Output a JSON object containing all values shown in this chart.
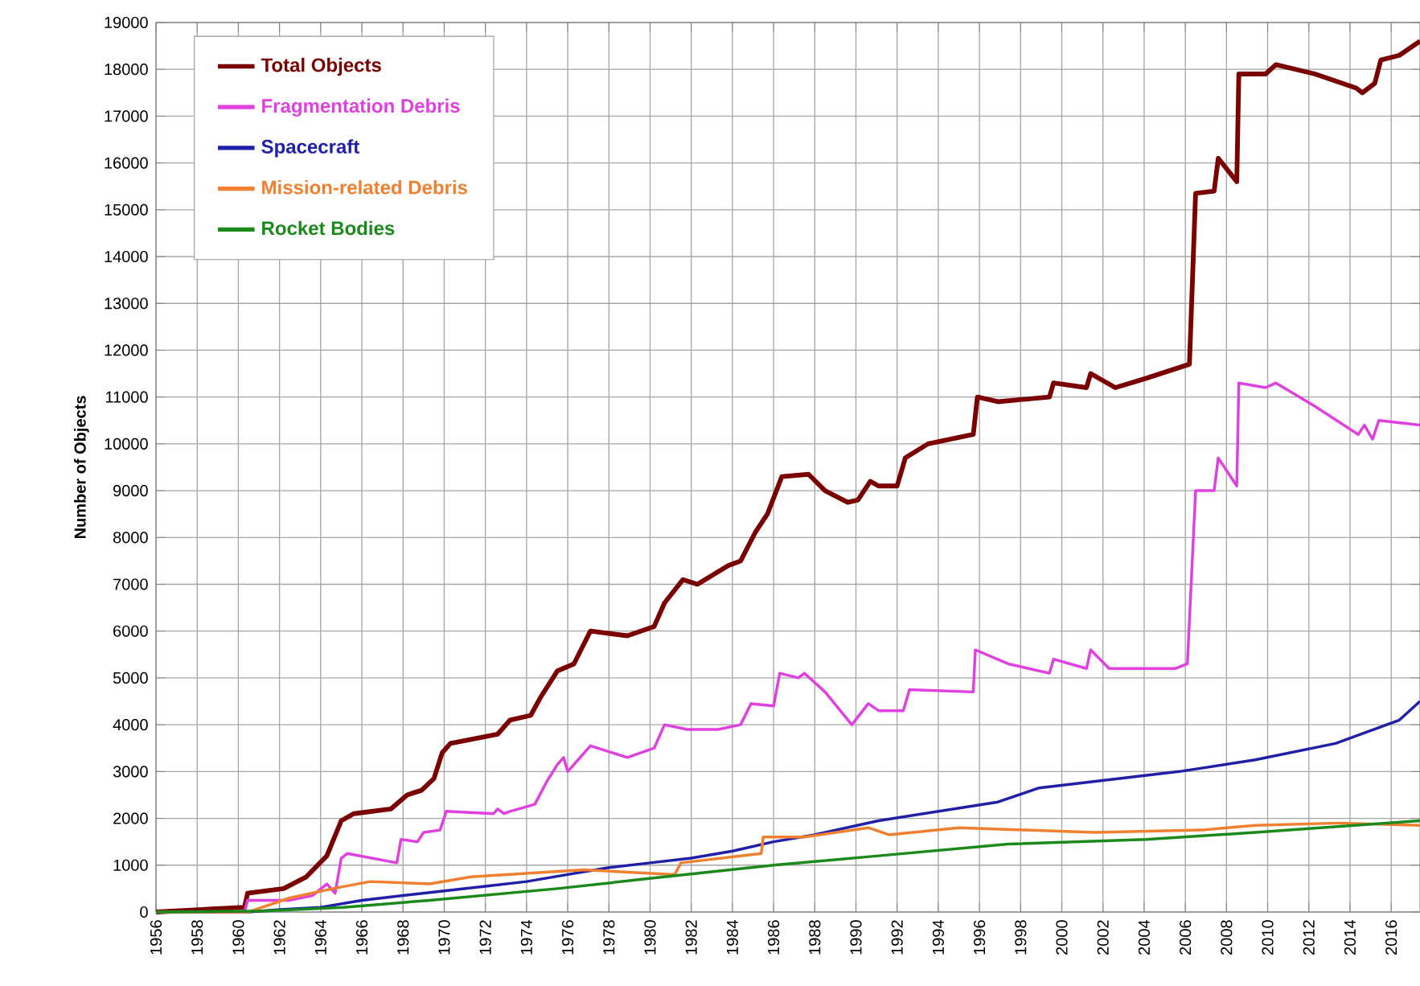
{
  "chart_data": {
    "type": "line",
    "ylabel": "Number of Objects",
    "xlim": [
      1956,
      2017.4
    ],
    "ylim": [
      0,
      19000
    ],
    "xticks": [
      1956,
      1958,
      1960,
      1962,
      1964,
      1966,
      1968,
      1970,
      1972,
      1974,
      1976,
      1978,
      1980,
      1982,
      1984,
      1986,
      1988,
      1990,
      1992,
      1994,
      1996,
      1998,
      2000,
      2002,
      2004,
      2006,
      2008,
      2010,
      2012,
      2014,
      2016
    ],
    "yticks": [
      0,
      1000,
      2000,
      3000,
      4000,
      5000,
      6000,
      7000,
      8000,
      9000,
      10000,
      11000,
      12000,
      13000,
      14000,
      15000,
      16000,
      17000,
      18000,
      19000
    ],
    "grid": true,
    "legend": "top left",
    "series": [
      {
        "name": "Total Objects",
        "color": "#7b0000",
        "x": [
          1956,
          1960.3,
          1960.45,
          1962.2,
          1963.3,
          1964.3,
          1965,
          1965.6,
          1967.4,
          1968.2,
          1968.9,
          1969.5,
          1969.9,
          1970.3,
          1972.6,
          1973.2,
          1974.2,
          1974.7,
          1975.5,
          1976.3,
          1977.1,
          1978.9,
          1980.2,
          1980.7,
          1981.6,
          1982.3,
          1983.8,
          1984.4,
          1985.1,
          1985.7,
          1986.4,
          1987.7,
          1988.5,
          1989.6,
          1990.1,
          1990.7,
          1991.1,
          1992.0,
          1992.4,
          1993.5,
          1995.7,
          1995.9,
          1996.9,
          1999.4,
          1999.6,
          2001.2,
          2001.4,
          2002.6,
          2004.1,
          2006.2,
          2006.5,
          2007.4,
          2007.6,
          2008.5,
          2008.6,
          2009.9,
          2010.4,
          2012.3,
          2014.3,
          2014.6,
          2015.2,
          2015.5,
          2016.4,
          2017.4
        ],
        "values": [
          0,
          100,
          400,
          500,
          750,
          1200,
          1950,
          2100,
          2200,
          2500,
          2600,
          2850,
          3400,
          3600,
          3800,
          4100,
          4200,
          4600,
          5150,
          5300,
          6000,
          5900,
          6100,
          6600,
          7100,
          7000,
          7400,
          7500,
          8100,
          8500,
          9300,
          9350,
          9000,
          8750,
          8800,
          9200,
          9100,
          9100,
          9700,
          10000,
          10200,
          11000,
          10900,
          11000,
          11300,
          11200,
          11500,
          11200,
          11400,
          11700,
          15350,
          15400,
          16100,
          15600,
          17900,
          17900,
          18100,
          17900,
          17600,
          17500,
          17700,
          18200,
          18300,
          18600
        ]
      },
      {
        "name": "Fragmentation Debris",
        "color": "#e040e0",
        "x": [
          1956,
          1960.3,
          1960.45,
          1962.5,
          1963.6,
          1964.3,
          1964.7,
          1965,
          1965.3,
          1967.7,
          1967.9,
          1968.7,
          1969,
          1969.8,
          1970.1,
          1972.4,
          1972.6,
          1972.9,
          1973.2,
          1974.4,
          1975,
          1975.5,
          1975.8,
          1976,
          1977.1,
          1978.9,
          1980.2,
          1980.7,
          1981.8,
          1983.3,
          1984.4,
          1984.9,
          1986,
          1986.3,
          1987.2,
          1987.5,
          1988.5,
          1989.8,
          1990.6,
          1991.1,
          1992.3,
          1992.6,
          1995.7,
          1995.8,
          1997.4,
          1999.4,
          1999.6,
          2001.2,
          2001.4,
          2002.3,
          2003.6,
          2005.5,
          2006.1,
          2006.5,
          2007.4,
          2007.6,
          2008.5,
          2008.6,
          2009.9,
          2010.4,
          2012.3,
          2014.4,
          2014.7,
          2015.1,
          2015.4,
          2017.4
        ],
        "values": [
          0,
          0,
          250,
          250,
          350,
          600,
          400,
          1150,
          1250,
          1050,
          1550,
          1500,
          1700,
          1750,
          2150,
          2100,
          2200,
          2100,
          2150,
          2300,
          2800,
          3150,
          3300,
          3000,
          3550,
          3300,
          3500,
          4000,
          3900,
          3900,
          4000,
          4450,
          4400,
          5100,
          5000,
          5100,
          4700,
          4000,
          4450,
          4300,
          4300,
          4750,
          4700,
          5600,
          5300,
          5100,
          5400,
          5200,
          5600,
          5200,
          5200,
          5200,
          5300,
          9000,
          9000,
          9700,
          9100,
          11300,
          11200,
          11300,
          10800,
          10200,
          10400,
          10100,
          10500,
          10400
        ]
      },
      {
        "name": "Spacecraft",
        "color": "#1f1fa8",
        "x": [
          1956,
          1960.5,
          1962,
          1964,
          1966,
          1968,
          1970,
          1972,
          1974,
          1976,
          1978,
          1980,
          1982,
          1984,
          1986,
          1988,
          1991.1,
          1996.9,
          1998.9,
          2005.7,
          2009.4,
          2013.3,
          2016.4,
          2017.4
        ],
        "values": [
          0,
          0,
          50,
          100,
          250,
          350,
          450,
          550,
          650,
          800,
          950,
          1050,
          1150,
          1300,
          1500,
          1650,
          1950,
          2350,
          2650,
          3000,
          3250,
          3600,
          4100,
          4500
        ]
      },
      {
        "name": "Mission-related Debris",
        "color": "#f08030",
        "x": [
          1956,
          1960.5,
          1962.5,
          1964.6,
          1966.4,
          1969.3,
          1971.3,
          1976.8,
          1981.2,
          1981.5,
          1985.4,
          1985.5,
          1987.5,
          1990.6,
          1991.6,
          1995,
          1998.2,
          2001.6,
          2006.8,
          2009.4,
          2013.5,
          2017.4
        ],
        "values": [
          0,
          0,
          300,
          500,
          650,
          600,
          750,
          900,
          800,
          1050,
          1250,
          1600,
          1600,
          1800,
          1650,
          1800,
          1750,
          1700,
          1750,
          1850,
          1900,
          1850
        ]
      },
      {
        "name": "Rocket Bodies",
        "color": "#1a8a1a",
        "x": [
          1956,
          1961.2,
          1965.1,
          1969.3,
          1975.5,
          1980.7,
          1986,
          1991.1,
          1997.4,
          2004.1,
          2009.4,
          2017.4
        ],
        "values": [
          0,
          20,
          100,
          250,
          500,
          750,
          1000,
          1200,
          1450,
          1550,
          1700,
          1950
        ]
      }
    ]
  }
}
